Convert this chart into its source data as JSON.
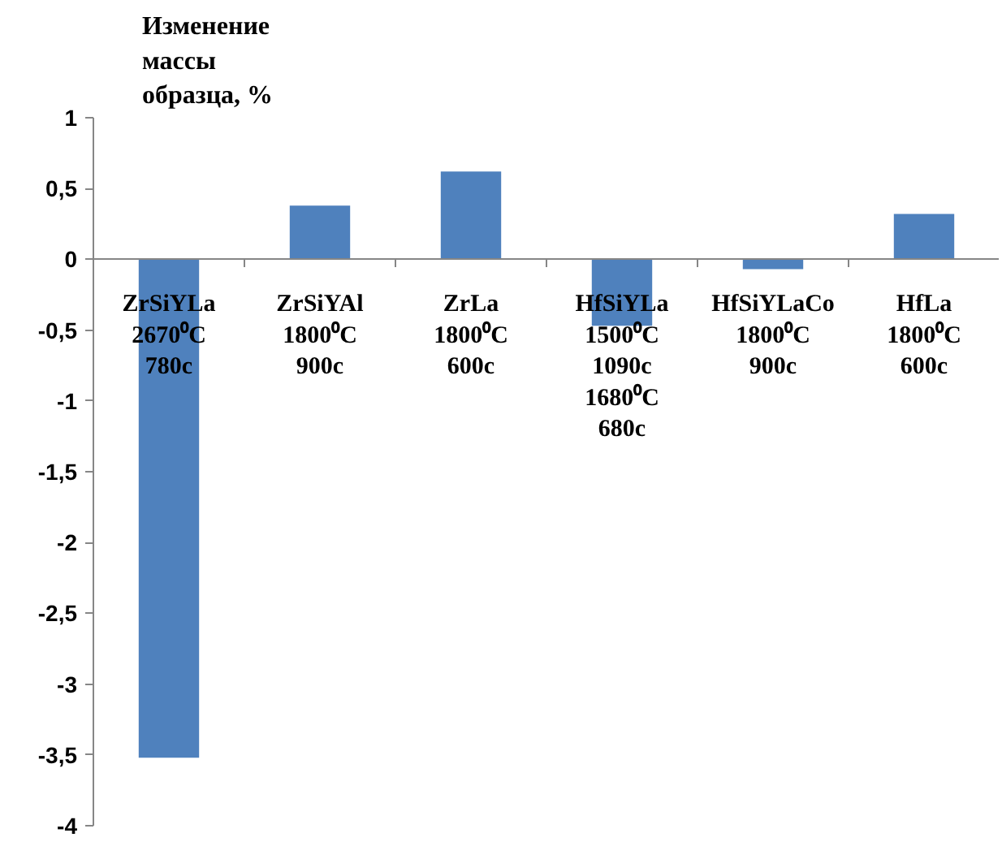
{
  "chart_data": {
    "type": "bar",
    "ylabel": "Изменение\nмассы\nобразца, %",
    "categories": [
      "ZrSiYLa\n2670⁰C\n780c",
      "ZrSiYAl\n1800⁰C\n900c",
      "ZrLa\n1800⁰C\n600c",
      "HfSiYLa\n1500⁰C\n1090c\n1680⁰C\n680c",
      "HfSiYLaCo\n1800⁰C\n900c",
      "HfLa\n1800⁰C\n600c"
    ],
    "values": [
      -3.52,
      0.38,
      0.62,
      -0.47,
      -0.07,
      0.32
    ],
    "color": "#4f81bd",
    "ylim": [
      -4,
      1
    ],
    "yticks": [
      {
        "value": -4,
        "label": "-4"
      },
      {
        "value": -3.5,
        "label": "-3,5"
      },
      {
        "value": -3,
        "label": "-3"
      },
      {
        "value": -2.5,
        "label": "-2,5"
      },
      {
        "value": -2,
        "label": "-2"
      },
      {
        "value": -1.5,
        "label": "-1,5"
      },
      {
        "value": -1,
        "label": "-1"
      },
      {
        "value": -0.5,
        "label": "-0,5"
      },
      {
        "value": 0,
        "label": "0"
      },
      {
        "value": 0.5,
        "label": "0,5"
      },
      {
        "value": 1,
        "label": "1"
      }
    ],
    "grid": false
  }
}
